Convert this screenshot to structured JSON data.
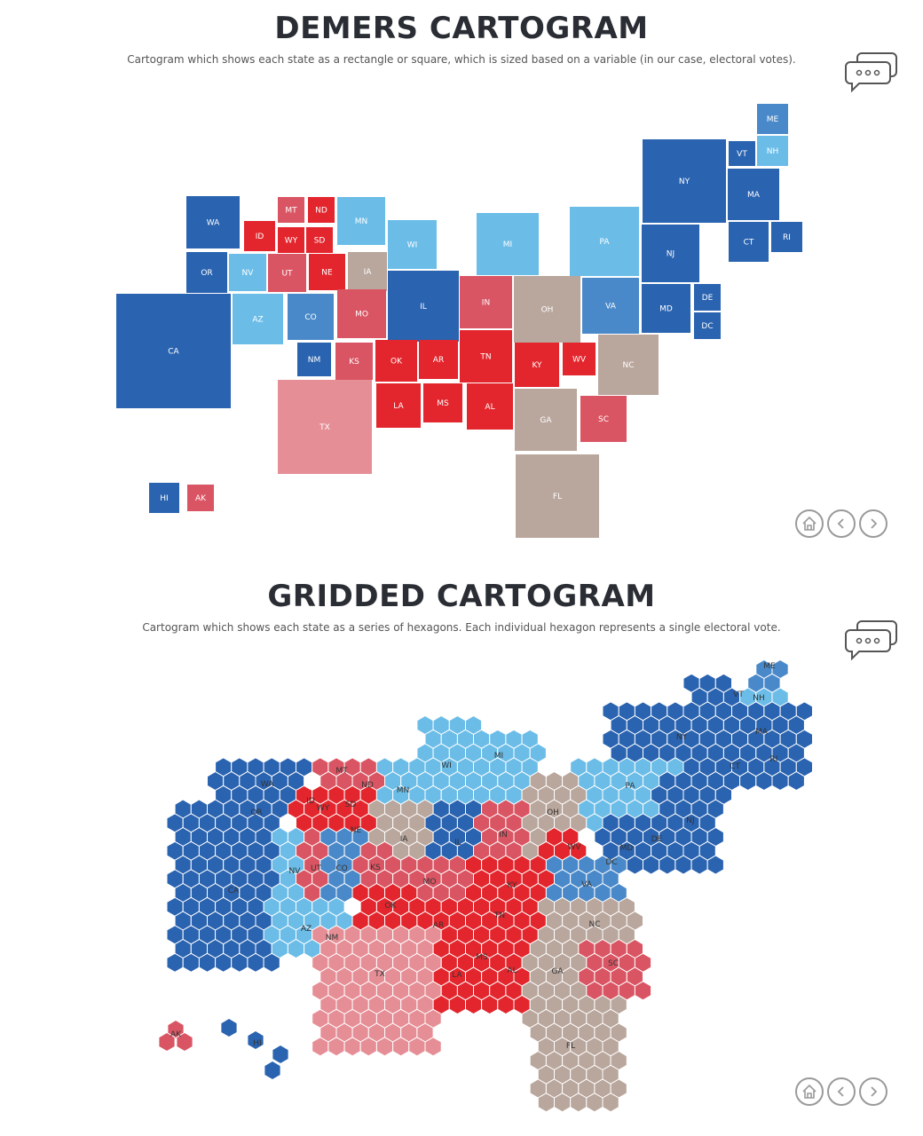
{
  "colors": {
    "dark_blue": "#2a63b0",
    "mid_blue": "#4a89c9",
    "light_blue": "#6bbde8",
    "dark_red": "#e3262d",
    "mid_red": "#da5563",
    "light_red": "#e68e96",
    "tan": "#b9a69c"
  },
  "demers": {
    "title": "DEMERS CARTOGRAM",
    "subtitle": "Cartogram which shows each state as a rectangle or square, which is sized based on a variable (in our case, electoral votes).",
    "states": [
      {
        "code": "ME",
        "color": "mid_blue"
      },
      {
        "code": "VT",
        "color": "dark_blue"
      },
      {
        "code": "NH",
        "color": "light_blue"
      },
      {
        "code": "NY",
        "color": "dark_blue"
      },
      {
        "code": "MA",
        "color": "dark_blue"
      },
      {
        "code": "WA",
        "color": "dark_blue"
      },
      {
        "code": "MT",
        "color": "mid_red"
      },
      {
        "code": "ND",
        "color": "dark_red"
      },
      {
        "code": "MN",
        "color": "light_blue"
      },
      {
        "code": "ID",
        "color": "dark_red"
      },
      {
        "code": "WY",
        "color": "dark_red"
      },
      {
        "code": "SD",
        "color": "dark_red"
      },
      {
        "code": "WI",
        "color": "light_blue"
      },
      {
        "code": "MI",
        "color": "light_blue"
      },
      {
        "code": "PA",
        "color": "light_blue"
      },
      {
        "code": "NJ",
        "color": "dark_blue"
      },
      {
        "code": "CT",
        "color": "dark_blue"
      },
      {
        "code": "RI",
        "color": "dark_blue"
      },
      {
        "code": "OR",
        "color": "dark_blue"
      },
      {
        "code": "NV",
        "color": "light_blue"
      },
      {
        "code": "UT",
        "color": "mid_red"
      },
      {
        "code": "NE",
        "color": "dark_red"
      },
      {
        "code": "IA",
        "color": "tan"
      },
      {
        "code": "IL",
        "color": "dark_blue"
      },
      {
        "code": "IN",
        "color": "mid_red"
      },
      {
        "code": "OH",
        "color": "tan"
      },
      {
        "code": "VA",
        "color": "mid_blue"
      },
      {
        "code": "MD",
        "color": "dark_blue"
      },
      {
        "code": "DE",
        "color": "dark_blue"
      },
      {
        "code": "DC",
        "color": "dark_blue"
      },
      {
        "code": "CA",
        "color": "dark_blue"
      },
      {
        "code": "AZ",
        "color": "light_blue"
      },
      {
        "code": "CO",
        "color": "mid_blue"
      },
      {
        "code": "MO",
        "color": "mid_red"
      },
      {
        "code": "NM",
        "color": "dark_blue"
      },
      {
        "code": "KS",
        "color": "mid_red"
      },
      {
        "code": "OK",
        "color": "dark_red"
      },
      {
        "code": "AR",
        "color": "dark_red"
      },
      {
        "code": "TN",
        "color": "dark_red"
      },
      {
        "code": "KY",
        "color": "dark_red"
      },
      {
        "code": "WV",
        "color": "dark_red"
      },
      {
        "code": "NC",
        "color": "tan"
      },
      {
        "code": "LA",
        "color": "dark_red"
      },
      {
        "code": "MS",
        "color": "dark_red"
      },
      {
        "code": "AL",
        "color": "dark_red"
      },
      {
        "code": "GA",
        "color": "tan"
      },
      {
        "code": "SC",
        "color": "mid_red"
      },
      {
        "code": "TX",
        "color": "light_red"
      },
      {
        "code": "FL",
        "color": "tan"
      },
      {
        "code": "HI",
        "color": "dark_blue"
      },
      {
        "code": "AK",
        "color": "mid_red"
      }
    ]
  },
  "gridded": {
    "title": "GRIDDED CARTOGRAM",
    "subtitle": "Cartogram which shows each state as a series of hexagons. Each individual hexagon represents a single electoral vote.",
    "labels": [
      "ME",
      "VT",
      "NH",
      "NY",
      "MA",
      "RI",
      "CT",
      "MI",
      "WI",
      "MN",
      "MT",
      "ND",
      "WA",
      "ID",
      "OR",
      "WY",
      "SD",
      "NE",
      "IA",
      "PA",
      "OH",
      "IN",
      "IL",
      "NJ",
      "DE",
      "MD",
      "DC",
      "WV",
      "VA",
      "NV",
      "UT",
      "CO",
      "KS",
      "MO",
      "KY",
      "CA",
      "OK",
      "TN",
      "NC",
      "AR",
      "AZ",
      "NM",
      "SC",
      "MS",
      "TX",
      "AL",
      "LA",
      "GA",
      "FL",
      "AK",
      "HI"
    ]
  },
  "icons": {
    "comment": "comment-icon",
    "home": "home-icon",
    "back": "chevron-left-icon",
    "forward": "chevron-right-icon"
  }
}
